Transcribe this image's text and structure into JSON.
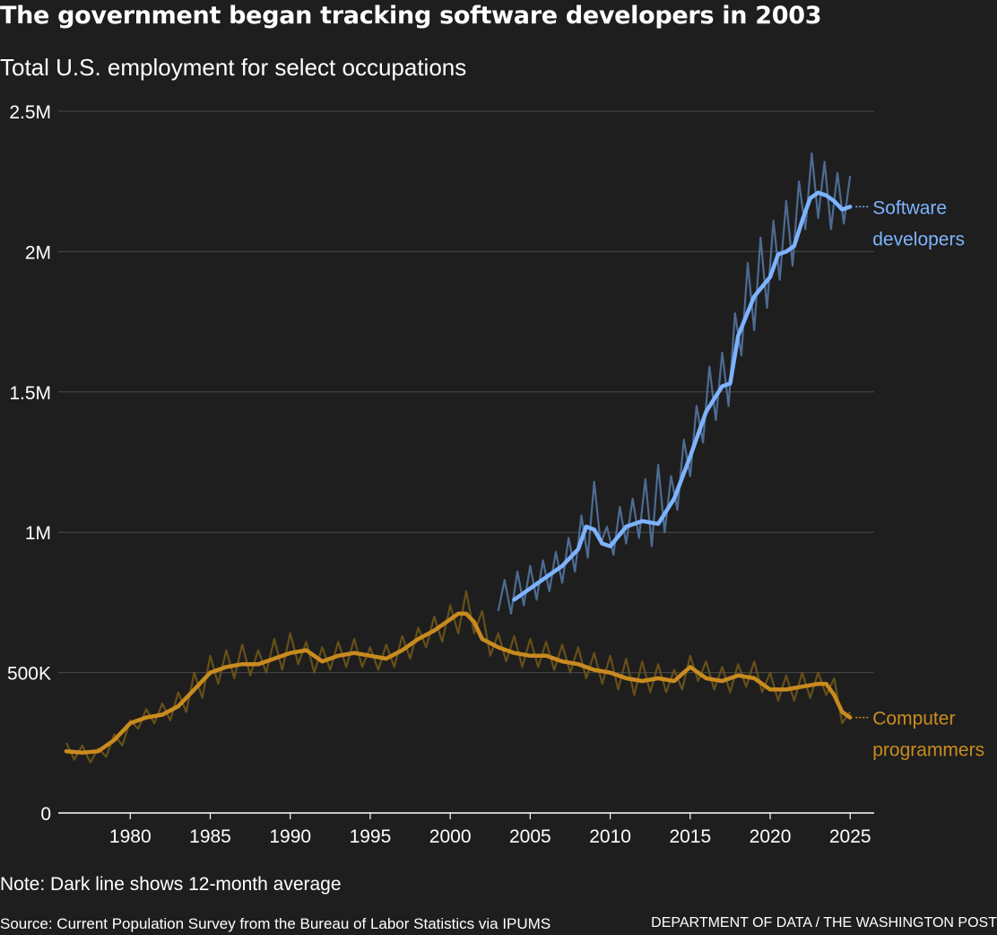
{
  "header": {
    "title": "The government began tracking software developers in 2003",
    "subtitle": "Total U.S. employment for select occupations"
  },
  "footer": {
    "note": "Note: Dark line shows 12-month average",
    "source": "Source: Current Population Survey from the Bureau of Labor Statistics via IPUMS",
    "credit": "DEPARTMENT OF DATA / THE WASHINGTON POST"
  },
  "chart_data": {
    "type": "line",
    "title": "The government began tracking software developers in 2003",
    "subtitle": "Total U.S. employment for select occupations",
    "xlabel": "",
    "ylabel": "",
    "xlim": [
      1975.5,
      2026.5
    ],
    "ylim": [
      0,
      2500000
    ],
    "x_ticks": [
      1980,
      1985,
      1990,
      1995,
      2000,
      2005,
      2010,
      2015,
      2020,
      2025
    ],
    "x_tick_labels": [
      "1980",
      "1985",
      "1990",
      "1995",
      "2000",
      "2005",
      "2010",
      "2015",
      "2020",
      "2025"
    ],
    "y_ticks": [
      0,
      500000,
      1000000,
      1500000,
      2000000,
      2500000
    ],
    "y_tick_labels": [
      "0",
      "500K",
      "1M",
      "1.5M",
      "2M",
      "2.5M"
    ],
    "grid": "horizontal",
    "legend": "direct labels at right end of lines",
    "series": [
      {
        "name": "Software developers",
        "label_lines": [
          "Software",
          "developers"
        ],
        "color": "#7db3ff",
        "raw_color": "#52739e",
        "average": {
          "x": [
            2004.0,
            2005.0,
            2006.0,
            2007.0,
            2008.0,
            2008.5,
            2009.0,
            2009.5,
            2010.0,
            2011.0,
            2012.0,
            2013.0,
            2014.0,
            2015.0,
            2016.0,
            2017.0,
            2017.5,
            2018.0,
            2019.0,
            2020.0,
            2020.5,
            2021.0,
            2021.5,
            2022.0,
            2022.5,
            2023.0,
            2023.5,
            2024.0,
            2024.5,
            2025.0
          ],
          "y": [
            760000,
            800000,
            840000,
            880000,
            940000,
            1020000,
            1010000,
            960000,
            950000,
            1020000,
            1040000,
            1030000,
            1120000,
            1270000,
            1430000,
            1520000,
            1530000,
            1700000,
            1840000,
            1910000,
            1990000,
            2000000,
            2020000,
            2110000,
            2190000,
            2210000,
            2200000,
            2180000,
            2150000,
            2160000
          ]
        },
        "monthly": {
          "x": [
            2003.0,
            2003.4,
            2003.8,
            2004.2,
            2004.6,
            2005.0,
            2005.4,
            2005.8,
            2006.2,
            2006.6,
            2007.0,
            2007.4,
            2007.8,
            2008.2,
            2008.6,
            2009.0,
            2009.4,
            2009.8,
            2010.2,
            2010.6,
            2011.0,
            2011.4,
            2011.8,
            2012.2,
            2012.6,
            2013.0,
            2013.4,
            2013.8,
            2014.2,
            2014.6,
            2015.0,
            2015.4,
            2015.8,
            2016.2,
            2016.6,
            2017.0,
            2017.4,
            2017.8,
            2018.2,
            2018.6,
            2019.0,
            2019.4,
            2019.8,
            2020.2,
            2020.6,
            2021.0,
            2021.4,
            2021.8,
            2022.2,
            2022.6,
            2023.0,
            2023.4,
            2023.8,
            2024.2,
            2024.6,
            2025.0
          ],
          "y": [
            720000,
            830000,
            710000,
            860000,
            740000,
            880000,
            760000,
            900000,
            790000,
            930000,
            820000,
            980000,
            860000,
            1060000,
            910000,
            1180000,
            960000,
            1020000,
            920000,
            1090000,
            960000,
            1120000,
            980000,
            1190000,
            950000,
            1240000,
            1000000,
            1200000,
            1080000,
            1330000,
            1200000,
            1450000,
            1320000,
            1590000,
            1400000,
            1640000,
            1450000,
            1780000,
            1630000,
            1960000,
            1720000,
            2050000,
            1800000,
            2110000,
            1900000,
            2180000,
            1950000,
            2250000,
            2080000,
            2350000,
            2120000,
            2320000,
            2080000,
            2280000,
            2100000,
            2270000
          ]
        }
      },
      {
        "name": "Computer programmers",
        "label_lines": [
          "Computer",
          "programmers"
        ],
        "color": "#c98b1f",
        "raw_color": "#6e5518",
        "average": {
          "x": [
            1976.0,
            1977.0,
            1978.0,
            1979.0,
            1980.0,
            1981.0,
            1982.0,
            1983.0,
            1984.0,
            1985.0,
            1986.0,
            1987.0,
            1988.0,
            1989.0,
            1990.0,
            1991.0,
            1992.0,
            1993.0,
            1994.0,
            1995.0,
            1996.0,
            1997.0,
            1998.0,
            1999.0,
            2000.0,
            2000.5,
            2001.0,
            2001.5,
            2002.0,
            2003.0,
            2004.0,
            2005.0,
            2006.0,
            2007.0,
            2008.0,
            2009.0,
            2010.0,
            2011.0,
            2012.0,
            2013.0,
            2014.0,
            2015.0,
            2016.0,
            2017.0,
            2018.0,
            2019.0,
            2020.0,
            2021.0,
            2022.0,
            2023.0,
            2023.5,
            2024.0,
            2024.5,
            2025.0
          ],
          "y": [
            220000,
            215000,
            220000,
            260000,
            320000,
            340000,
            350000,
            380000,
            440000,
            500000,
            520000,
            530000,
            530000,
            550000,
            570000,
            580000,
            540000,
            560000,
            570000,
            560000,
            550000,
            580000,
            620000,
            650000,
            690000,
            710000,
            710000,
            680000,
            620000,
            590000,
            570000,
            560000,
            560000,
            540000,
            530000,
            510000,
            500000,
            480000,
            470000,
            480000,
            470000,
            520000,
            480000,
            470000,
            490000,
            480000,
            440000,
            440000,
            450000,
            460000,
            460000,
            420000,
            360000,
            340000
          ]
        },
        "monthly": {
          "x": [
            1976.0,
            1976.5,
            1977.0,
            1977.5,
            1978.0,
            1978.5,
            1979.0,
            1979.5,
            1980.0,
            1980.5,
            1981.0,
            1981.5,
            1982.0,
            1982.5,
            1983.0,
            1983.5,
            1984.0,
            1984.5,
            1985.0,
            1985.5,
            1986.0,
            1986.5,
            1987.0,
            1987.5,
            1988.0,
            1988.5,
            1989.0,
            1989.5,
            1990.0,
            1990.5,
            1991.0,
            1991.5,
            1992.0,
            1992.5,
            1993.0,
            1993.5,
            1994.0,
            1994.5,
            1995.0,
            1995.5,
            1996.0,
            1996.5,
            1997.0,
            1997.5,
            1998.0,
            1998.5,
            1999.0,
            1999.5,
            2000.0,
            2000.5,
            2001.0,
            2001.5,
            2002.0,
            2002.5,
            2003.0,
            2003.5,
            2004.0,
            2004.5,
            2005.0,
            2005.5,
            2006.0,
            2006.5,
            2007.0,
            2007.5,
            2008.0,
            2008.5,
            2009.0,
            2009.5,
            2010.0,
            2010.5,
            2011.0,
            2011.5,
            2012.0,
            2012.5,
            2013.0,
            2013.5,
            2014.0,
            2014.5,
            2015.0,
            2015.5,
            2016.0,
            2016.5,
            2017.0,
            2017.5,
            2018.0,
            2018.5,
            2019.0,
            2019.5,
            2020.0,
            2020.5,
            2021.0,
            2021.5,
            2022.0,
            2022.5,
            2023.0,
            2023.5,
            2024.0,
            2024.5,
            2025.0
          ],
          "y": [
            250000,
            190000,
            240000,
            180000,
            230000,
            200000,
            280000,
            240000,
            330000,
            300000,
            370000,
            320000,
            390000,
            330000,
            430000,
            360000,
            500000,
            410000,
            560000,
            460000,
            580000,
            480000,
            600000,
            490000,
            580000,
            500000,
            620000,
            510000,
            640000,
            530000,
            610000,
            500000,
            590000,
            510000,
            610000,
            520000,
            620000,
            520000,
            590000,
            510000,
            600000,
            520000,
            630000,
            550000,
            660000,
            590000,
            700000,
            610000,
            740000,
            640000,
            790000,
            640000,
            720000,
            560000,
            640000,
            540000,
            630000,
            520000,
            620000,
            520000,
            610000,
            510000,
            600000,
            500000,
            590000,
            480000,
            570000,
            460000,
            560000,
            440000,
            550000,
            420000,
            540000,
            430000,
            530000,
            430000,
            510000,
            440000,
            560000,
            470000,
            540000,
            440000,
            520000,
            430000,
            530000,
            450000,
            540000,
            430000,
            500000,
            400000,
            490000,
            400000,
            500000,
            410000,
            500000,
            420000,
            480000,
            320000,
            360000
          ]
        }
      }
    ]
  }
}
